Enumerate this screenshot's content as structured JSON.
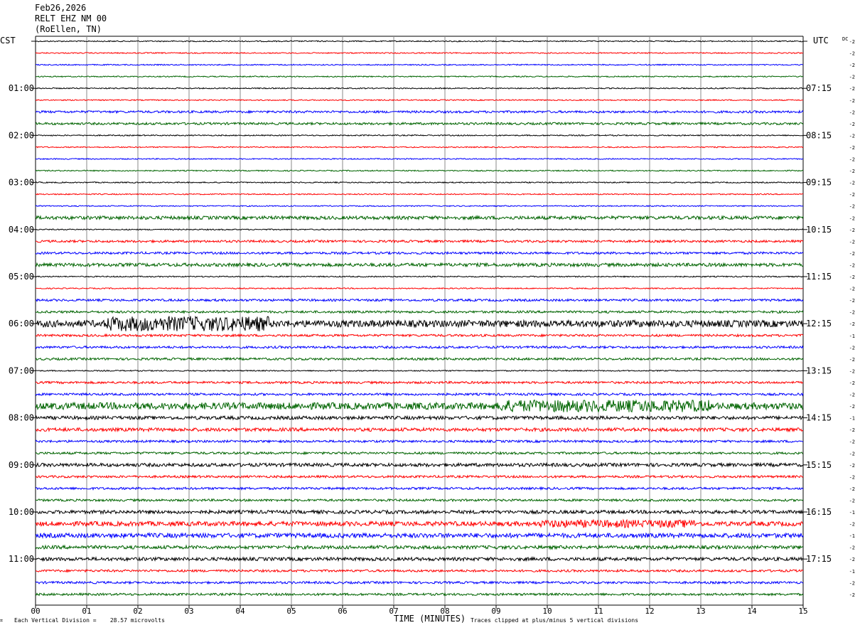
{
  "header": {
    "date": "Feb26,2026",
    "station": "RELT EHZ NM 00",
    "location": "(RoEllen, TN)"
  },
  "chart_data": {
    "type": "line",
    "title": "Feb26,2026",
    "left_axis_label": "CST",
    "right_axis_label": "UTC",
    "dc_label": "DC",
    "xlabel": "TIME (MINUTES)",
    "xlim": [
      0,
      15
    ],
    "x_ticks": [
      "00",
      "01",
      "02",
      "03",
      "04",
      "05",
      "06",
      "07",
      "08",
      "09",
      "10",
      "11",
      "12",
      "13",
      "14",
      "15"
    ],
    "rows_per_hour": 4,
    "row_count": 48,
    "trace_colors": [
      "#000000",
      "#ff0000",
      "#0000ff",
      "#006400"
    ],
    "cst_labels": [
      "01:00",
      "02:00",
      "03:00",
      "04:00",
      "05:00",
      "06:00",
      "07:00",
      "08:00",
      "09:00",
      "10:00",
      "11:00"
    ],
    "utc_labels": [
      "07:15",
      "08:15",
      "09:15",
      "10:15",
      "11:15",
      "12:15",
      "13:15",
      "14:15",
      "15:15",
      "16:15",
      "17:15"
    ],
    "dc_offsets": [
      "-2",
      "-2",
      "-2",
      "-2",
      "-2",
      "-2",
      "-2",
      "-2",
      "-2",
      "-2",
      "-2",
      "-2",
      "-2",
      "-2",
      "-2",
      "-2",
      "-2",
      "-2",
      "-2",
      "-2",
      "-2",
      "-2",
      "-2",
      "-2",
      "-2",
      "-1",
      "-2",
      "-2",
      "-2",
      "-2",
      "-2",
      "-2",
      "-1",
      "-2",
      "-2",
      "-2",
      "-2",
      "-2",
      "-2",
      "-2",
      "-1",
      "-2",
      "-1",
      "-2",
      "-2",
      "-1",
      "-2",
      "-2"
    ],
    "amplitude": [
      1,
      1,
      1,
      1,
      1,
      1,
      2,
      2,
      1,
      1,
      1,
      1,
      1,
      1,
      1,
      3,
      1,
      2,
      2,
      3,
      1,
      1,
      2,
      2,
      6,
      2,
      2,
      2,
      1,
      2,
      2,
      6,
      3,
      3,
      2,
      2,
      3,
      2,
      2,
      2,
      3,
      4,
      4,
      3,
      3,
      2,
      2,
      2
    ],
    "annotations": {
      "vertical_division": "Each Vertical Division =    28.57 microvolts",
      "clipping_note": "Traces clipped at plus/minus 5 vertical divisions"
    }
  }
}
